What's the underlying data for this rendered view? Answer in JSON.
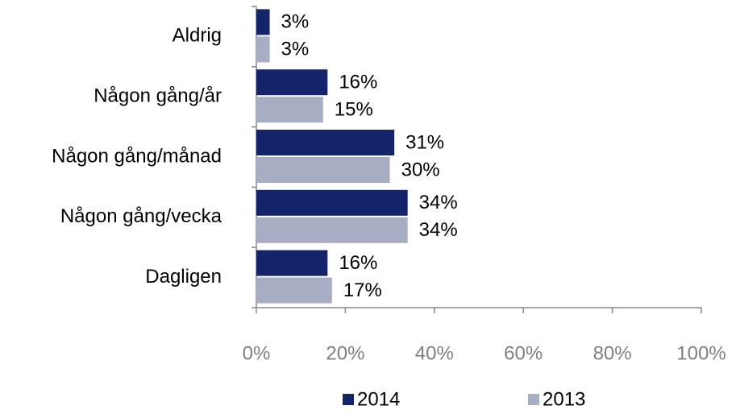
{
  "chart_data": {
    "type": "bar",
    "orientation": "horizontal",
    "categories": [
      "Aldrig",
      "Någon gång/år",
      "Någon gång/månad",
      "Någon gång/vecka",
      "Dagligen"
    ],
    "series": [
      {
        "name": "2014",
        "color": "#14246a",
        "values": [
          3,
          16,
          31,
          34,
          16
        ],
        "value_labels": [
          "3%",
          "16%",
          "31%",
          "34%",
          "16%"
        ]
      },
      {
        "name": "2013",
        "color": "#a7adc2",
        "values": [
          3,
          15,
          30,
          34,
          17
        ],
        "value_labels": [
          "3%",
          "15%",
          "30%",
          "34%",
          "17%"
        ]
      }
    ],
    "xlim": [
      0,
      100
    ],
    "xticks": [
      {
        "value": 0,
        "label": "0%"
      },
      {
        "value": 20,
        "label": "20%"
      },
      {
        "value": 40,
        "label": "40%"
      },
      {
        "value": 60,
        "label": "60%"
      },
      {
        "value": 80,
        "label": "80%"
      },
      {
        "value": 100,
        "label": "100%"
      }
    ],
    "legend": "bottom"
  }
}
